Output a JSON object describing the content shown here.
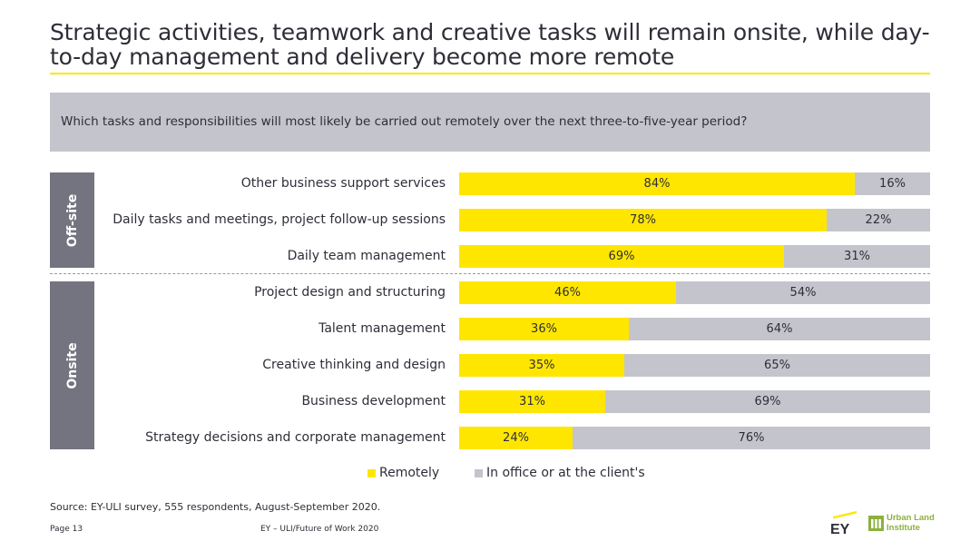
{
  "title": "Strategic activities, teamwork and creative tasks will remain onsite, while day-to-day management and delivery become more remote",
  "question": "Which tasks and responsibilities will most likely be carried out remotely over the next three-to-five-year period?",
  "groups": {
    "offsite": "Off-site",
    "onsite": "Onsite"
  },
  "colors": {
    "remotely": "#ffe600",
    "office": "#c4c4cd",
    "side_block": "#747480"
  },
  "chart_data": {
    "type": "bar",
    "orientation": "horizontal",
    "stacked": true,
    "normalized": true,
    "categories": [
      "Other business support services",
      "Daily tasks and meetings, project follow-up sessions",
      "Daily team management",
      "Project design and structuring",
      "Talent management",
      "Creative thinking and design ",
      "Business development",
      "Strategy decisions and corporate management"
    ],
    "series": [
      {
        "name": "Remotely",
        "values": [
          84,
          78,
          69,
          46,
          36,
          35,
          31,
          24
        ],
        "labels": [
          "84%",
          "78%",
          "69%",
          "46%",
          "36%",
          "35%",
          "31%",
          "24%"
        ]
      },
      {
        "name": "In office or at the client's",
        "values": [
          16,
          22,
          31,
          54,
          64,
          65,
          69,
          76
        ],
        "labels": [
          "16%",
          "22%",
          "31%",
          "54%",
          "64%",
          "65%",
          "69%",
          "76%"
        ]
      }
    ],
    "xlim": [
      0,
      100
    ],
    "legend_position": "bottom"
  },
  "source": "Source: EY-ULI survey, 555 respondents, August-September 2020.",
  "footer": {
    "page": "Page 13",
    "center": "EY – ULI/Future of Work 2020"
  },
  "logos": {
    "ey": "EY",
    "uli": "Urban Land Institute"
  }
}
